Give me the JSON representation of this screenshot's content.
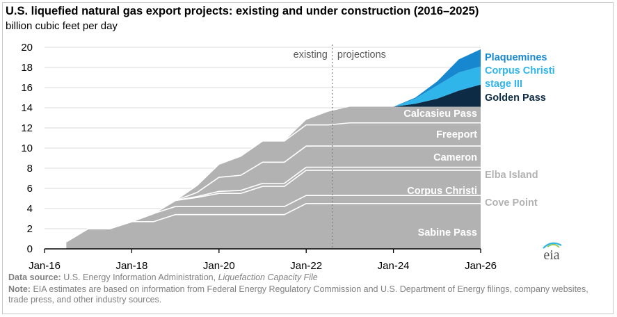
{
  "title": "U.S. liquefied natural gas export projects: existing and under construction (2016–2025)",
  "subtitle": "billion cubic feet per day",
  "source_label": "Data source:",
  "source_text": "U.S. Energy Information Administration,",
  "source_file": "Liquefaction Capacity File",
  "note_label": "Note:",
  "note_text": "EIA estimates are based on information from Federal Energy Regulatory Commission and U.S. Department of Energy filings, company websites, trade press, and other industry sources.",
  "logo_text": "eia",
  "colors": {
    "existing": "#b2b2b2",
    "golden_pass": "#0d2b45",
    "corpus_christi_stage3": "#2fb5ea",
    "plaquemines": "#1788cf",
    "grid": "#d9d9d9",
    "divider": "#7f7f7f"
  },
  "chart_data": {
    "type": "area",
    "stacked": true,
    "title": "U.S. liquefied natural gas export projects: existing and under construction (2016–2025)",
    "ylabel": "billion cubic feet per day",
    "xlabel": "",
    "x_range": [
      2016,
      2026
    ],
    "ylim": [
      0,
      20
    ],
    "y_ticks": [
      0,
      2,
      4,
      6,
      8,
      10,
      12,
      14,
      16,
      18,
      20
    ],
    "x_ticks": [
      2016,
      2018,
      2020,
      2022,
      2024,
      2026
    ],
    "x_tick_labels": [
      "Jan-16",
      "Jan-18",
      "Jan-20",
      "Jan-22",
      "Jan-24",
      "Jan-26"
    ],
    "divider_x": 2022.6,
    "region_labels": [
      "existing",
      "projections"
    ],
    "x": [
      2016.5,
      2017.0,
      2017.5,
      2018.0,
      2018.5,
      2019.0,
      2019.5,
      2020.0,
      2020.5,
      2021.0,
      2021.5,
      2022.0,
      2022.5,
      2023.0,
      2023.5,
      2024.0,
      2024.5,
      2025.0,
      2025.5,
      2026.0
    ],
    "series": [
      {
        "name": "Sabine Pass",
        "label_color": "#ffffff",
        "values": [
          0.7,
          2.0,
          2.0,
          2.7,
          2.7,
          3.4,
          3.4,
          3.4,
          3.4,
          3.4,
          3.4,
          4.5,
          4.5,
          4.5,
          4.5,
          4.5,
          4.5,
          4.5,
          4.5,
          4.5
        ]
      },
      {
        "name": "Cove Point",
        "label_color": "#b2b2b2",
        "values": [
          0,
          0,
          0,
          0,
          0.8,
          0.8,
          0.8,
          0.8,
          0.8,
          0.8,
          0.8,
          0.8,
          0.8,
          0.8,
          0.8,
          0.8,
          0.8,
          0.8,
          0.8,
          0.8
        ]
      },
      {
        "name": "Corpus Christi",
        "label_color": "#ffffff",
        "values": [
          0,
          0,
          0,
          0,
          0,
          0.6,
          0.9,
          1.3,
          1.3,
          2.0,
          2.0,
          2.5,
          2.5,
          2.5,
          2.5,
          2.5,
          2.5,
          2.5,
          2.5,
          2.5
        ]
      },
      {
        "name": "Elba Island",
        "label_color": "#b2b2b2",
        "values": [
          0,
          0,
          0,
          0,
          0,
          0,
          0.1,
          0.2,
          0.3,
          0.3,
          0.3,
          0.3,
          0.3,
          0.3,
          0.3,
          0.3,
          0.3,
          0.3,
          0.3,
          0.3
        ]
      },
      {
        "name": "Cameron",
        "label_color": "#ffffff",
        "values": [
          0,
          0,
          0,
          0,
          0,
          0,
          0.4,
          1.4,
          1.5,
          2.1,
          2.1,
          2.1,
          2.1,
          2.1,
          2.1,
          2.1,
          2.1,
          2.1,
          2.1,
          2.1
        ]
      },
      {
        "name": "Freeport",
        "label_color": "#ffffff",
        "values": [
          0,
          0,
          0,
          0,
          0,
          0,
          0.7,
          1.3,
          1.9,
          2.1,
          2.1,
          2.1,
          2.1,
          2.3,
          2.3,
          2.3,
          2.3,
          2.3,
          2.3,
          2.3
        ]
      },
      {
        "name": "Calcasieu Pass",
        "label_color": "#ffffff",
        "values": [
          0,
          0,
          0,
          0,
          0,
          0,
          0,
          0,
          0,
          0,
          0,
          0.5,
          1.3,
          1.6,
          1.6,
          1.6,
          1.6,
          1.6,
          1.6,
          1.6
        ]
      },
      {
        "name": "Golden Pass",
        "label_color": "#0d2b45",
        "values": [
          0,
          0,
          0,
          0,
          0,
          0,
          0,
          0,
          0,
          0,
          0,
          0,
          0,
          0,
          0,
          0,
          0.3,
          0.8,
          1.6,
          2.2
        ]
      },
      {
        "name": "Corpus Christi stage III",
        "label_color": "#2fb5ea",
        "values": [
          0,
          0,
          0,
          0,
          0,
          0,
          0,
          0,
          0,
          0,
          0,
          0,
          0,
          0,
          0,
          0,
          0.5,
          1.3,
          1.8,
          1.8
        ]
      },
      {
        "name": "Plaquemines",
        "label_color": "#1788cf",
        "values": [
          0,
          0,
          0,
          0,
          0,
          0,
          0,
          0,
          0,
          0,
          0,
          0,
          0,
          0,
          0,
          0,
          0.1,
          0.4,
          1.3,
          1.7
        ]
      }
    ]
  }
}
